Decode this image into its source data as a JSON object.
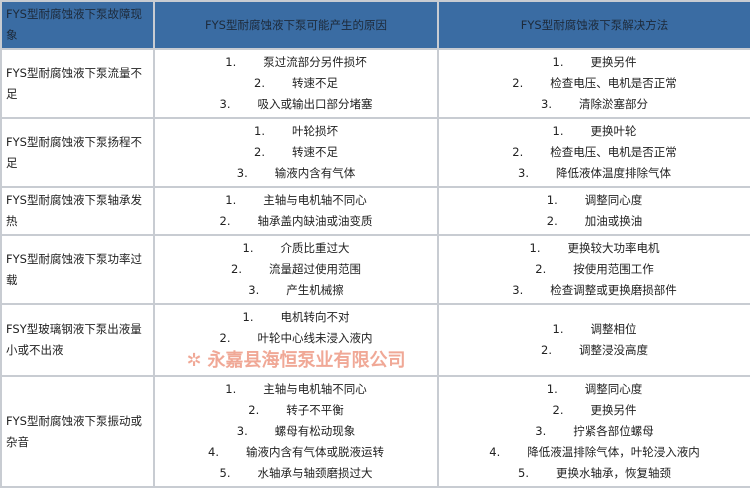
{
  "headers": [
    "FYS型耐腐蚀液下泵故障现象",
    "FYS型耐腐蚀液下泵可能产生的原因",
    "FYS型耐腐蚀液下泵解决方法"
  ],
  "rows": [
    {
      "symptom": "FYS型耐腐蚀液下泵流量不足",
      "causes": [
        "泵过流部分另件损坏",
        "转速不足",
        "吸入或输出口部分堵塞"
      ],
      "solutions": [
        "更换另件",
        "检查电压、电机是否正常",
        "清除淤塞部分"
      ]
    },
    {
      "symptom": "FYS型耐腐蚀液下泵扬程不足",
      "causes": [
        "叶轮损坏",
        "转速不足",
        "输液内含有气体"
      ],
      "solutions": [
        "更换叶轮",
        "检查电压、电机是否正常",
        "降低液体温度排除气体"
      ]
    },
    {
      "symptom": "FYS型耐腐蚀液下泵轴承发热",
      "causes": [
        "主轴与电机轴不同心",
        "轴承盖内缺油或油变质"
      ],
      "solutions": [
        "调整同心度",
        "加油或换油"
      ]
    },
    {
      "symptom": "FYS型耐腐蚀液下泵功率过载",
      "causes": [
        "介质比重过大",
        "流量超过使用范围",
        "产生机械擦"
      ],
      "solutions": [
        "更换较大功率电机",
        "按使用范围工作",
        "检查调整或更换磨损部件"
      ]
    },
    {
      "symptom": "FSY型玻璃钢液下泵出液量小或不出液",
      "causes": [
        "电机转向不对",
        "叶轮中心线未浸入液内"
      ],
      "solutions": [
        "调整相位",
        "调整浸没高度"
      ]
    },
    {
      "symptom": "FYS型耐腐蚀液下泵振动或杂音",
      "causes": [
        "主轴与电机轴不同心",
        "转子不平衡",
        "螺母有松动现象",
        "输液内含有气体或脱液运转",
        "水轴承与轴颈磨损过大"
      ],
      "solutions": [
        "调整同心度",
        "更换另件",
        "拧紧各部位螺母",
        "降低液温排除气体，叶轮浸入液内",
        "更换水轴承，恢复轴颈"
      ]
    }
  ],
  "watermark": "永嘉县海恒泵业有限公司",
  "colors": {
    "header_bg": "#3a6ca3",
    "border": "#c8ccd2",
    "watermark": "#e66e50"
  }
}
